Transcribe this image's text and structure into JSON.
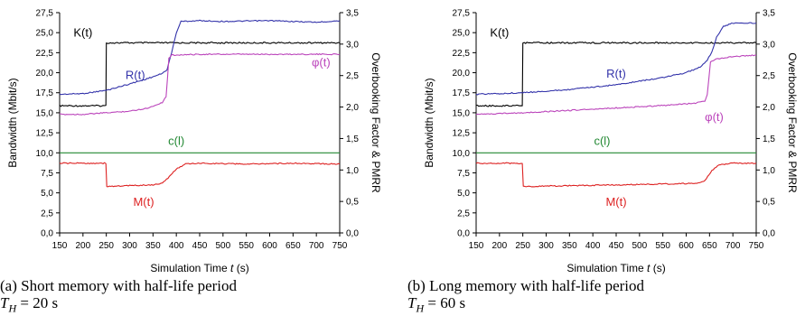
{
  "chart_data": [
    {
      "type": "line",
      "caption": "(a) Short memory with half-life period\n$T_H = 20$ s",
      "xlabel": "Simulation Time t (s)",
      "ylabel": "Bandwidth (Mbit/s)",
      "y2label": "Overbooking Factor & PMRR",
      "xlim": [
        150,
        750
      ],
      "ylim": [
        0,
        27.5
      ],
      "y2lim": [
        0,
        3.5
      ],
      "xticks": [
        "150",
        "200",
        "250",
        "300",
        "350",
        "400",
        "450",
        "500",
        "550",
        "600",
        "650",
        "700",
        "750"
      ],
      "yticks": [
        "0,0",
        "2,5",
        "5,0",
        "7,5",
        "10,0",
        "12,5",
        "15,0",
        "17,5",
        "20,0",
        "22,5",
        "25,0",
        "27,5"
      ],
      "y2ticks": [
        "0,0",
        "0,5",
        "1,0",
        "1,5",
        "2,0",
        "2,5",
        "3,0",
        "3,5"
      ],
      "grid": false,
      "series": [
        {
          "name": "K(t)",
          "axis": "right",
          "color": "#000000",
          "x": [
            150,
            249,
            250,
            750
          ],
          "y": [
            2.02,
            2.02,
            3.02,
            3.02
          ]
        },
        {
          "name": "R(t)",
          "axis": "left",
          "color": "#3333aa",
          "x": [
            150,
            200,
            250,
            300,
            340,
            370,
            380,
            390,
            400,
            410,
            450,
            500,
            600,
            700,
            750
          ],
          "y": [
            17.3,
            17.4,
            17.8,
            18.6,
            19.3,
            19.9,
            20.4,
            22.5,
            25.0,
            26.4,
            26.5,
            26.4,
            26.5,
            26.3,
            26.5
          ]
        },
        {
          "name": "φ(t)",
          "axis": "left",
          "color": "#bb44bb",
          "x": [
            150,
            200,
            250,
            300,
            340,
            370,
            378,
            384,
            390,
            450,
            600,
            750
          ],
          "y": [
            14.8,
            14.8,
            15.0,
            15.2,
            15.6,
            16.3,
            17.0,
            21.8,
            22.2,
            22.3,
            22.3,
            22.3
          ]
        },
        {
          "name": "c(l)",
          "axis": "left",
          "color": "#228833",
          "x": [
            150,
            750
          ],
          "y": [
            10.0,
            10.0
          ]
        },
        {
          "name": "M(t)",
          "axis": "left",
          "color": "#dd2222",
          "x": [
            150,
            249,
            251,
            300,
            350,
            370,
            385,
            400,
            420,
            450,
            550,
            650,
            750
          ],
          "y": [
            8.7,
            8.7,
            5.8,
            5.9,
            6.0,
            6.2,
            7.0,
            8.0,
            8.6,
            8.7,
            8.6,
            8.7,
            8.6
          ]
        }
      ],
      "labels": [
        {
          "text": "K(t)",
          "x": 200,
          "y": 24.5,
          "color": "#000000"
        },
        {
          "text": "R(t)",
          "x": 312,
          "y": 19.2,
          "color": "#3333aa"
        },
        {
          "text": "φ(t)",
          "x": 710,
          "y": 20.8,
          "color": "#bb44bb"
        },
        {
          "text": "c(l)",
          "x": 400,
          "y": 11.0,
          "color": "#228833"
        },
        {
          "text": "M(t)",
          "x": 330,
          "y": 3.4,
          "color": "#dd2222"
        }
      ]
    },
    {
      "type": "line",
      "caption": "(b) Long memory with half-life period\n$T_H = 60$ s",
      "xlabel": "Simulation Time t (s)",
      "ylabel": "Bandwidth (Mbit/s)",
      "y2label": "Overbooking Factor & PMRR",
      "xlim": [
        150,
        750
      ],
      "ylim": [
        0,
        27.5
      ],
      "y2lim": [
        0,
        3.5
      ],
      "xticks": [
        "150",
        "200",
        "250",
        "300",
        "350",
        "400",
        "450",
        "500",
        "550",
        "600",
        "650",
        "700",
        "750"
      ],
      "yticks": [
        "0,0",
        "2,5",
        "5,0",
        "7,5",
        "10,0",
        "12,5",
        "15,0",
        "17,5",
        "20,0",
        "22,5",
        "25,0",
        "27,5"
      ],
      "y2ticks": [
        "0,0",
        "0,5",
        "1,0",
        "1,5",
        "2,0",
        "2,5",
        "3,0",
        "3,5"
      ],
      "grid": false,
      "series": [
        {
          "name": "K(t)",
          "axis": "right",
          "color": "#000000",
          "x": [
            150,
            249,
            250,
            750
          ],
          "y": [
            2.02,
            2.02,
            3.02,
            3.02
          ]
        },
        {
          "name": "R(t)",
          "axis": "left",
          "color": "#3333aa",
          "x": [
            150,
            250,
            350,
            450,
            550,
            600,
            630,
            645,
            655,
            665,
            680,
            700,
            750
          ],
          "y": [
            17.3,
            17.5,
            17.9,
            18.5,
            19.4,
            20.0,
            20.7,
            21.6,
            22.6,
            24.4,
            25.8,
            26.2,
            26.2
          ]
        },
        {
          "name": "φ(t)",
          "axis": "left",
          "color": "#bb44bb",
          "x": [
            150,
            250,
            350,
            450,
            550,
            620,
            640,
            645,
            652,
            665,
            700,
            750
          ],
          "y": [
            14.8,
            15.0,
            15.3,
            15.6,
            15.9,
            16.2,
            16.5,
            17.3,
            21.3,
            21.7,
            22.0,
            22.2
          ]
        },
        {
          "name": "c(l)",
          "axis": "left",
          "color": "#228833",
          "x": [
            150,
            750
          ],
          "y": [
            10.0,
            10.0
          ]
        },
        {
          "name": "M(t)",
          "axis": "left",
          "color": "#dd2222",
          "x": [
            150,
            249,
            251,
            350,
            450,
            550,
            620,
            640,
            655,
            670,
            700,
            750
          ],
          "y": [
            8.7,
            8.7,
            5.8,
            5.9,
            6.0,
            6.1,
            6.2,
            6.5,
            7.8,
            8.5,
            8.7,
            8.7
          ]
        }
      ],
      "labels": [
        {
          "text": "K(t)",
          "x": 200,
          "y": 24.5,
          "color": "#000000"
        },
        {
          "text": "R(t)",
          "x": 450,
          "y": 19.4,
          "color": "#3333aa"
        },
        {
          "text": "φ(t)",
          "x": 660,
          "y": 14.0,
          "color": "#bb44bb"
        },
        {
          "text": "c(l)",
          "x": 420,
          "y": 11.0,
          "color": "#228833"
        },
        {
          "text": "M(t)",
          "x": 450,
          "y": 3.4,
          "color": "#dd2222"
        }
      ]
    }
  ]
}
